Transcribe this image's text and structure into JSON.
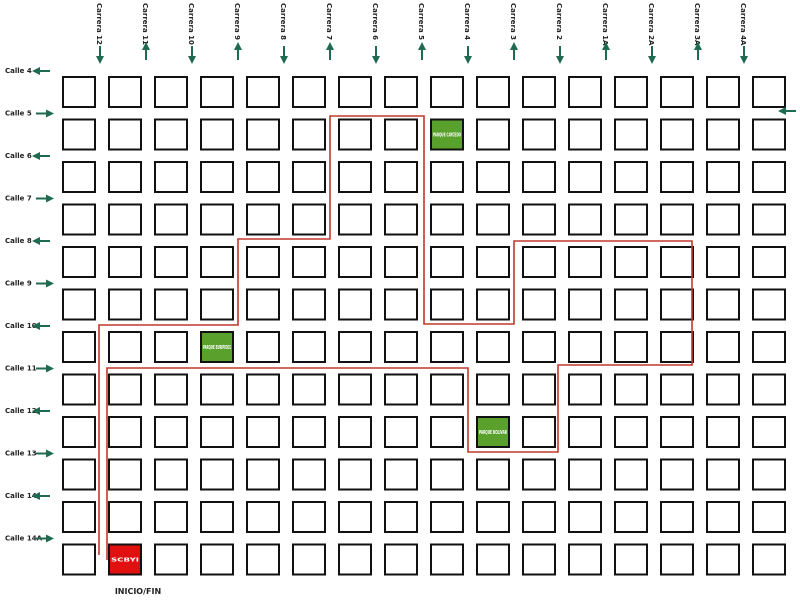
{
  "map": {
    "carreras": [
      "Carrera 12",
      "Carrera 11",
      "Carrera 10",
      "Carrera 9",
      "Carrera 8",
      "Carrera 7",
      "Carrera 6",
      "Carrera 5",
      "Carrera 4",
      "Carrera 3",
      "Carrera 2",
      "Carrera 1A",
      "Carrera 2A",
      "Carrera 3A",
      "Carrera 4A"
    ],
    "calles": [
      "Calle 4",
      "Calle 5",
      "Calle 6",
      "Calle 7",
      "Calle 8",
      "Calle 9",
      "Calle 10",
      "Calle 11",
      "Calle 12",
      "Calle 13",
      "Calle 14",
      "Calle 14A"
    ],
    "places": [
      {
        "label": "PARQUE CAYCEDO",
        "kind": "park"
      },
      {
        "label": "PARQUE EURIPIDES",
        "kind": "park"
      },
      {
        "label": "PARQUE BOLIVAR",
        "kind": "park"
      },
      {
        "label": "SCBYI",
        "kind": "start"
      }
    ],
    "start_caption": "INICIO/FIN"
  }
}
